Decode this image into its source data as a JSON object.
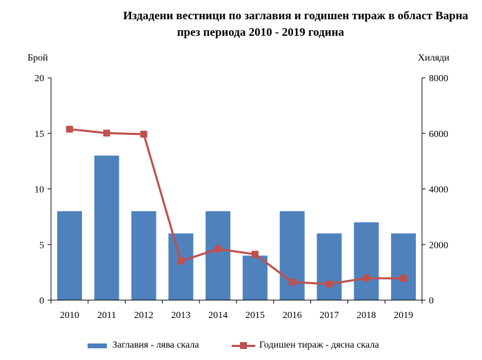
{
  "chart_data": {
    "type": "bar+line",
    "title_line1": "Издадени вестници по заглавия и годишен тираж в област Варна",
    "title_line2": "през периода 2010 - 2019 година",
    "left_axis_label": "Брой",
    "right_axis_label": "Хиляди",
    "categories": [
      "2010",
      "2011",
      "2012",
      "2013",
      "2014",
      "2015",
      "2016",
      "2017",
      "2018",
      "2019"
    ],
    "left_ylim": [
      0,
      20
    ],
    "left_ticks": [
      "0",
      "5",
      "10",
      "15",
      "20"
    ],
    "right_ylim": [
      0,
      8000
    ],
    "right_ticks": [
      "0",
      "2000",
      "4000",
      "6000",
      "8000"
    ],
    "series": [
      {
        "name": "Заглавия - лява скала",
        "type": "bar",
        "axis": "left",
        "color": "#4f81bd",
        "values": [
          8,
          13,
          8,
          6,
          8,
          4,
          8,
          6,
          7,
          6
        ]
      },
      {
        "name": "Годишен тираж - дясна скала",
        "type": "line",
        "axis": "right",
        "color": "#c0504d",
        "values": [
          6150,
          6010,
          5970,
          1400,
          1840,
          1650,
          650,
          580,
          790,
          780
        ]
      }
    ],
    "legend_position": "bottom",
    "grid": false
  }
}
